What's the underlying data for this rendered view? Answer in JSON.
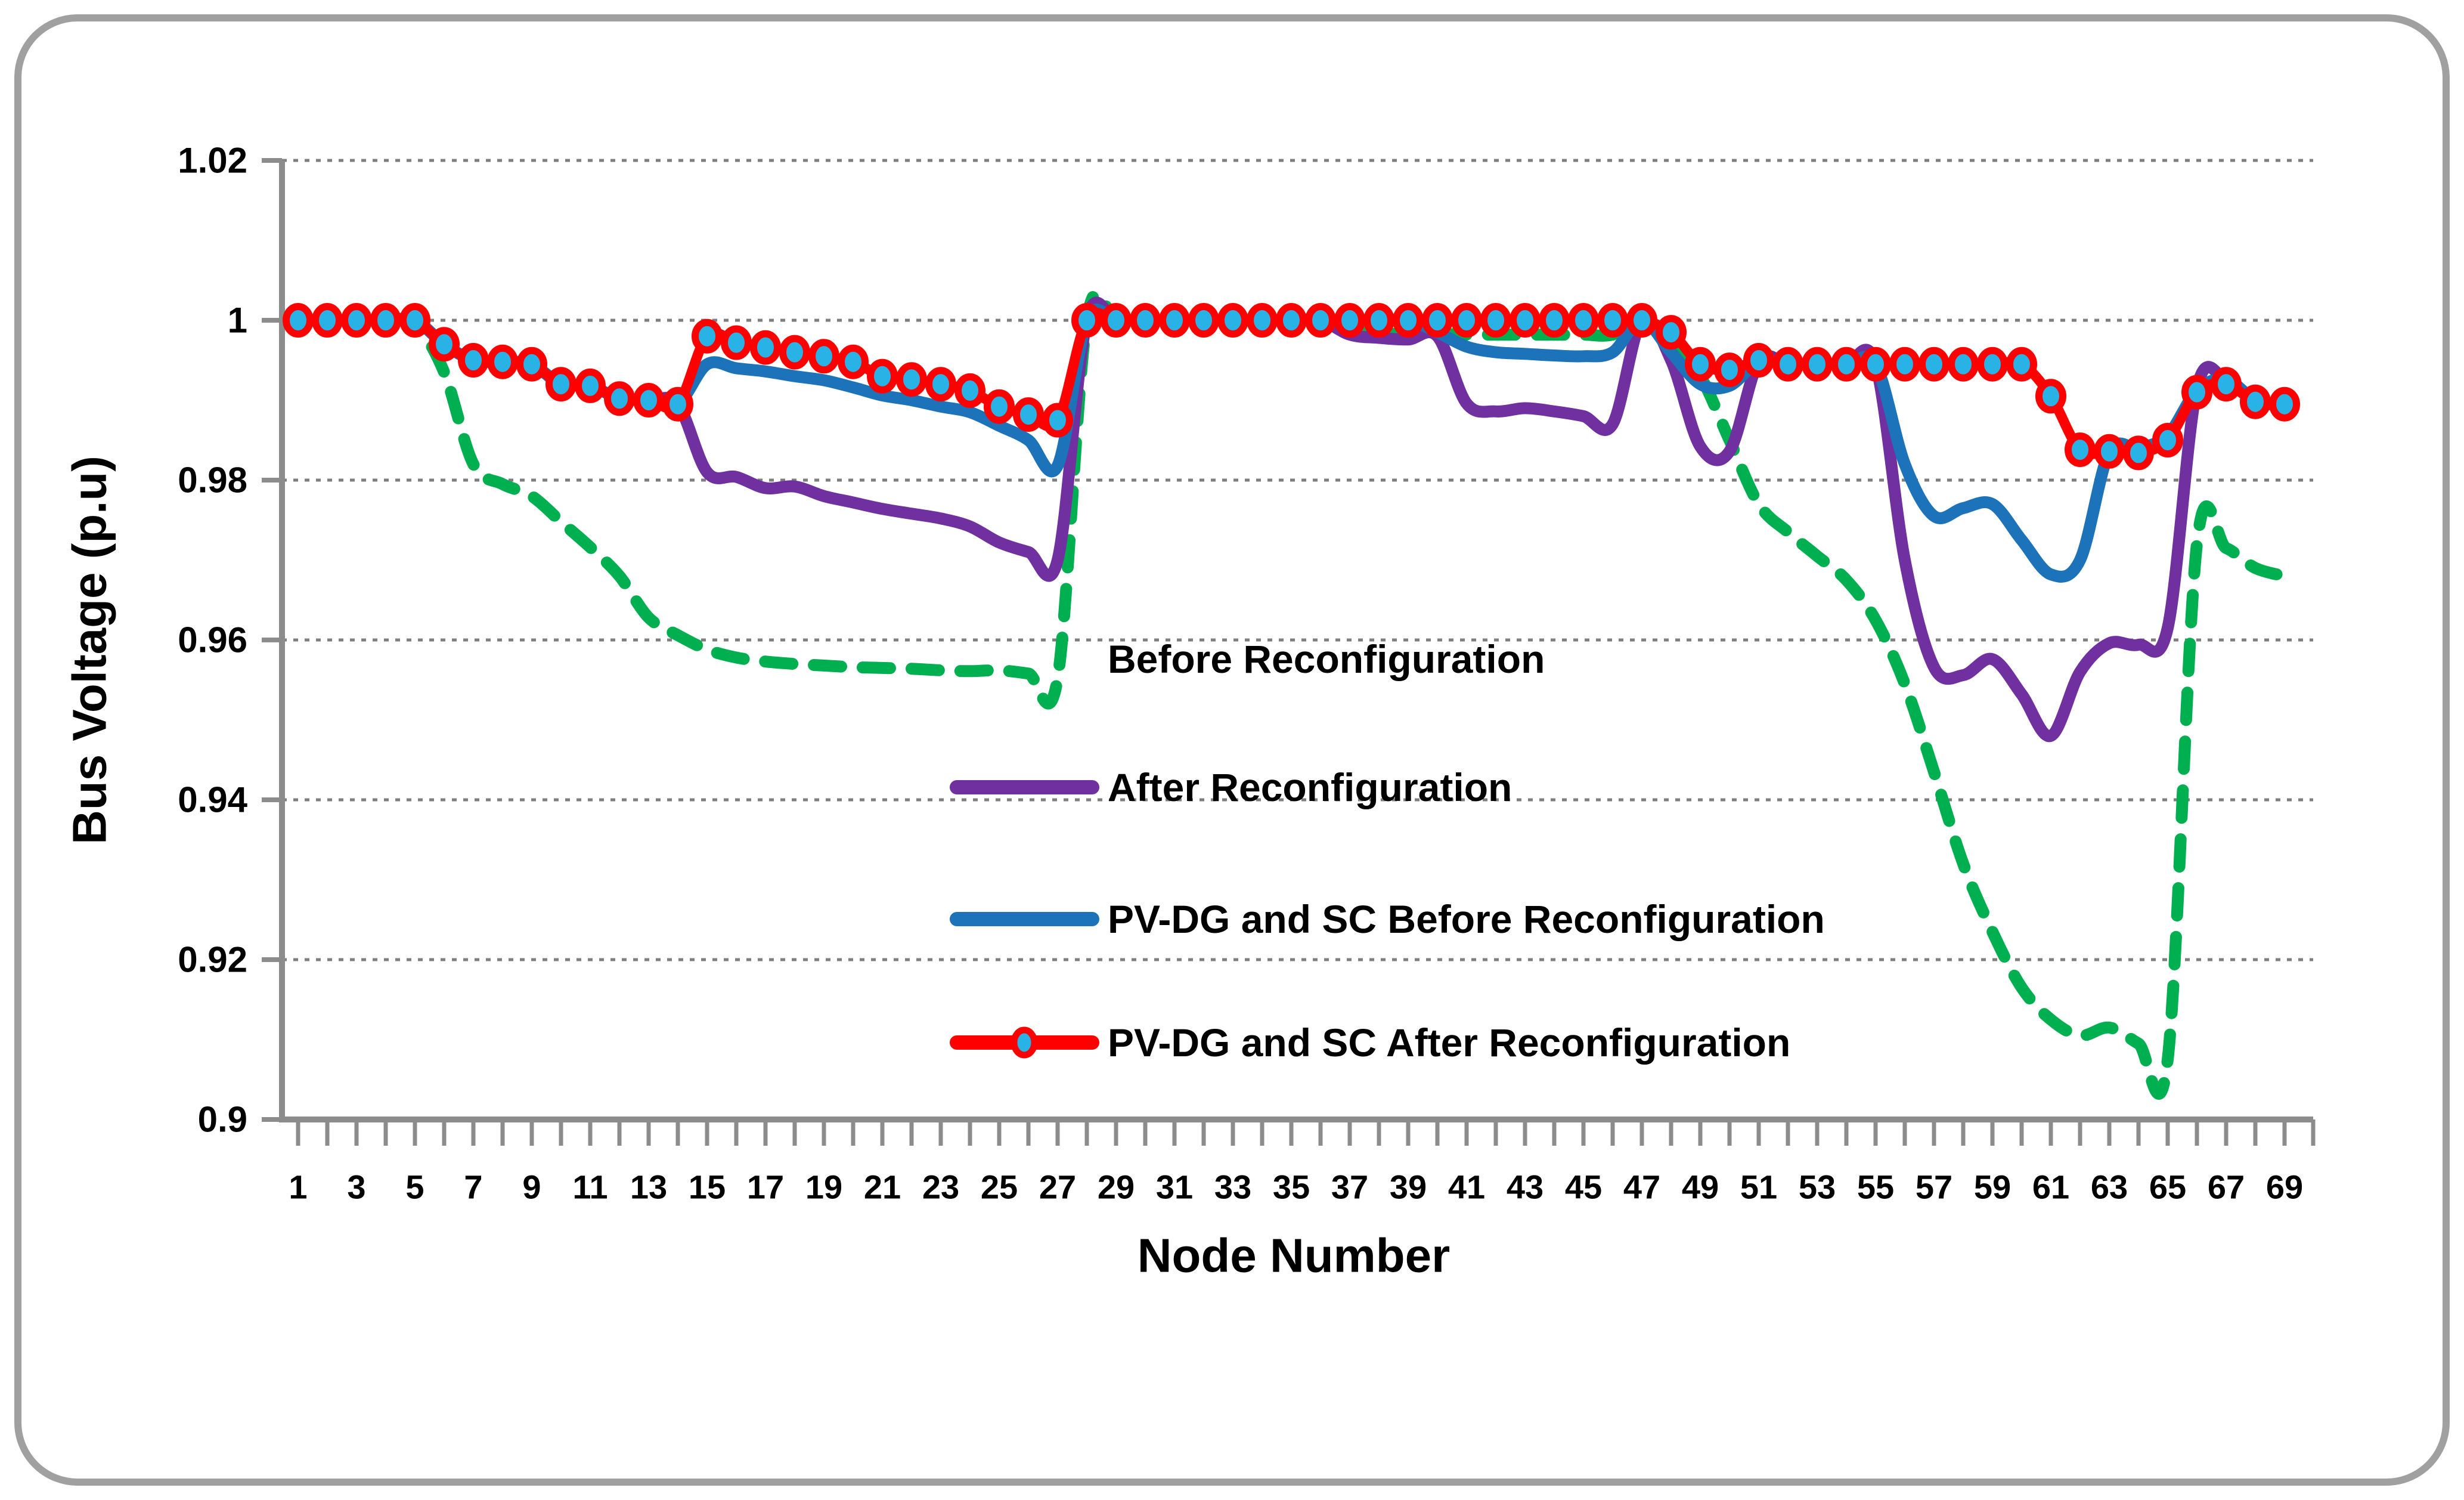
{
  "chart_data": {
    "type": "line",
    "title": "",
    "xlabel": "Node Number",
    "ylabel": "Bus Voltage (p.u)",
    "ylim": [
      0.9,
      1.02
    ],
    "grid": true,
    "legend_position": "inside-center",
    "x": [
      1,
      2,
      3,
      4,
      5,
      6,
      7,
      8,
      9,
      10,
      11,
      12,
      13,
      14,
      15,
      16,
      17,
      18,
      19,
      20,
      21,
      22,
      23,
      24,
      25,
      26,
      27,
      28,
      29,
      30,
      31,
      32,
      33,
      34,
      35,
      36,
      37,
      38,
      39,
      40,
      41,
      42,
      43,
      44,
      45,
      46,
      47,
      48,
      49,
      50,
      51,
      52,
      53,
      54,
      55,
      56,
      57,
      58,
      59,
      60,
      61,
      62,
      63,
      64,
      65,
      66,
      67,
      68,
      69
    ],
    "xtick_labels": [
      "1",
      "3",
      "5",
      "7",
      "9",
      "11",
      "13",
      "15",
      "17",
      "19",
      "21",
      "23",
      "25",
      "27",
      "29",
      "31",
      "33",
      "35",
      "37",
      "39",
      "41",
      "43",
      "45",
      "47",
      "49",
      "51",
      "53",
      "55",
      "57",
      "59",
      "61",
      "63",
      "65",
      "67",
      "69"
    ],
    "ytick_labels": [
      "1.02",
      "1",
      "0.98",
      "0.96",
      "0.94",
      "0.92",
      "0.9"
    ],
    "ytick_values": [
      1.02,
      1.0,
      0.98,
      0.96,
      0.94,
      0.92,
      0.9
    ],
    "series": [
      {
        "name": "Before Reconfiguration",
        "color": "#00B050",
        "style": "dashed",
        "values": [
          1.0,
          1.0,
          1.0,
          1.0,
          0.9995,
          0.9935,
          0.982,
          0.9795,
          0.978,
          0.9748,
          0.9716,
          0.968,
          0.9628,
          0.9606,
          0.9588,
          0.9578,
          0.9573,
          0.957,
          0.9568,
          0.9566,
          0.9565,
          0.9564,
          0.9562,
          0.9561,
          0.9562,
          0.9558,
          0.9552,
          1.0,
          1.0,
          1.0,
          1.0,
          1.0,
          1.0,
          1.0,
          1.0,
          1.0,
          0.999,
          0.9984,
          0.9983,
          0.9983,
          0.9982,
          0.9982,
          0.9982,
          0.9982,
          0.9982,
          0.9982,
          1.0,
          0.997,
          0.993,
          0.985,
          0.977,
          0.9735,
          0.9705,
          0.9675,
          0.9625,
          0.9545,
          0.9435,
          0.932,
          0.9235,
          0.9165,
          0.9125,
          0.9105,
          0.9115,
          0.9095,
          0.9075,
          0.972,
          0.9715,
          0.969,
          0.968
        ]
      },
      {
        "name": "After Reconfiguration",
        "color": "#7030A0",
        "style": "solid",
        "values": [
          1.0,
          1.0,
          1.0,
          1.0,
          1.0,
          0.997,
          0.995,
          0.9948,
          0.9945,
          0.992,
          0.9918,
          0.9902,
          0.99,
          0.9895,
          0.981,
          0.9804,
          0.979,
          0.9792,
          0.978,
          0.9772,
          0.9764,
          0.9758,
          0.9752,
          0.9742,
          0.9722,
          0.971,
          0.97,
          1.0,
          1.0,
          1.0,
          1.0,
          1.0,
          1.0,
          1.0,
          1.0,
          1.0,
          0.9982,
          0.9978,
          0.9976,
          0.998,
          0.9896,
          0.9886,
          0.989,
          0.9886,
          0.988,
          0.987,
          1.0,
          0.995,
          0.9842,
          0.9836,
          0.9948,
          0.9945,
          0.9945,
          0.9945,
          0.9945,
          0.97,
          0.9566,
          0.9556,
          0.9576,
          0.9532,
          0.948,
          0.956,
          0.9596,
          0.9594,
          0.9615,
          0.9915,
          0.9925,
          0.9898,
          0.9895
        ]
      },
      {
        "name": "PV-DG and SC Before Reconfiguration",
        "color": "#1C73B9",
        "style": "solid",
        "values": [
          1.0,
          1.0,
          1.0,
          1.0,
          1.0,
          0.997,
          0.995,
          0.9948,
          0.9945,
          0.992,
          0.9918,
          0.9902,
          0.99,
          0.9895,
          0.9945,
          0.994,
          0.9936,
          0.993,
          0.9925,
          0.9916,
          0.9906,
          0.99,
          0.9892,
          0.9885,
          0.9868,
          0.985,
          0.9818,
          1.0,
          1.0,
          1.0,
          1.0,
          1.0,
          1.0,
          1.0,
          1.0,
          1.0,
          1.0,
          1.0,
          1.0,
          0.9985,
          0.9967,
          0.996,
          0.9958,
          0.9956,
          0.9955,
          0.996,
          1.0,
          0.996,
          0.992,
          0.9918,
          0.9948,
          0.9945,
          0.9945,
          0.9945,
          0.9945,
          0.982,
          0.9755,
          0.9765,
          0.977,
          0.9725,
          0.9682,
          0.97,
          0.9835,
          0.984,
          0.9856,
          0.9912,
          0.9926,
          0.99,
          0.9895
        ]
      },
      {
        "name": "PV-DG and SC After Reconfiguration",
        "color": "#FF0000",
        "style": "solid-markers",
        "marker_fill": "#29B2E6",
        "values": [
          1.0,
          1.0,
          1.0,
          1.0,
          1.0,
          0.997,
          0.995,
          0.9948,
          0.9945,
          0.992,
          0.9918,
          0.9902,
          0.99,
          0.9895,
          0.998,
          0.9972,
          0.9966,
          0.996,
          0.9955,
          0.9948,
          0.993,
          0.9926,
          0.992,
          0.9912,
          0.9892,
          0.9882,
          0.9875,
          1.0,
          1.0,
          1.0,
          1.0,
          1.0,
          1.0,
          1.0,
          1.0,
          1.0,
          1.0,
          1.0,
          1.0,
          1.0,
          1.0,
          1.0,
          1.0,
          1.0,
          1.0,
          1.0,
          1.0,
          0.9985,
          0.9945,
          0.9938,
          0.995,
          0.9945,
          0.9945,
          0.9945,
          0.9945,
          0.9945,
          0.9945,
          0.9945,
          0.9945,
          0.9945,
          0.9905,
          0.9838,
          0.9836,
          0.9834,
          0.985,
          0.991,
          0.992,
          0.9898,
          0.9895
        ]
      }
    ]
  },
  "colors": {
    "grid": "#7F7F7F",
    "axis": "#8C8C8C",
    "border": "#A0A0A0",
    "text": "#000000",
    "background": "#FFFFFF"
  }
}
